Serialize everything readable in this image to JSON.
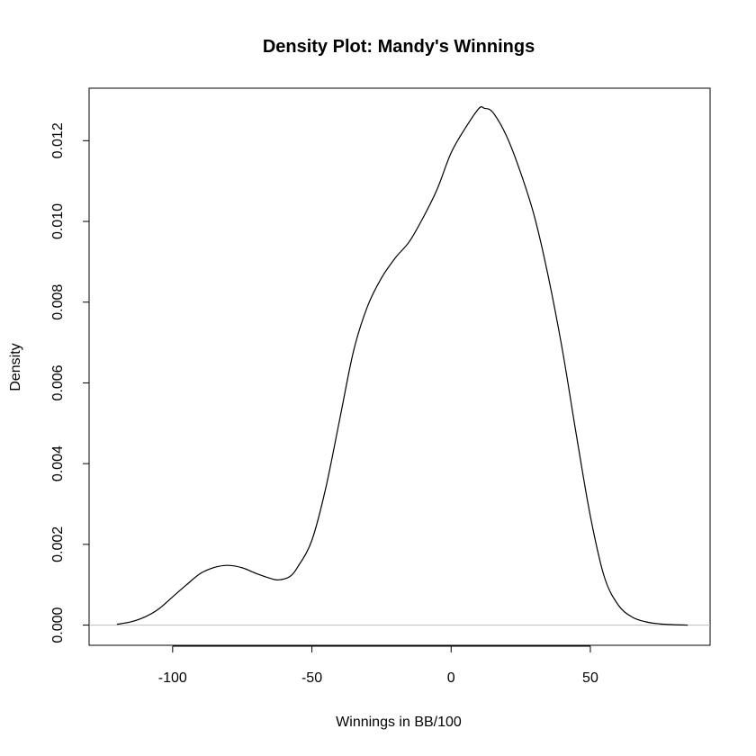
{
  "chart_data": {
    "type": "line",
    "title": "Density Plot: Mandy's Winnings",
    "xlabel": "Winnings in BB/100",
    "ylabel": "Density",
    "xlim": [
      -130,
      93
    ],
    "ylim": [
      -0.0005,
      0.0133
    ],
    "x_ticks": [
      -100,
      -50,
      0,
      50
    ],
    "x_tick_labels": [
      "-100",
      "-50",
      "0",
      "50"
    ],
    "y_ticks": [
      0.0,
      0.002,
      0.004,
      0.006,
      0.008,
      0.01,
      0.012
    ],
    "y_tick_labels": [
      "0.000",
      "0.002",
      "0.004",
      "0.006",
      "0.008",
      "0.010",
      "0.012"
    ],
    "grid": false,
    "baseline_y": 0,
    "colors": {
      "curve": "#000000",
      "baseline": "#bebebe",
      "frame": "#000000"
    },
    "series": [
      {
        "x": [
          -120,
          -115,
          -110,
          -105,
          -100,
          -95,
          -90,
          -85,
          -80,
          -75,
          -70,
          -65,
          -62,
          -58,
          -55,
          -50,
          -45,
          -40,
          -35,
          -30,
          -25,
          -20,
          -15,
          -10,
          -5,
          0,
          5,
          10,
          12,
          15,
          20,
          25,
          30,
          35,
          40,
          45,
          50,
          55,
          60,
          65,
          70,
          75,
          80,
          85
        ],
        "y": [
          2e-05,
          8e-05,
          0.0002,
          0.0004,
          0.0007,
          0.001,
          0.00128,
          0.00143,
          0.00148,
          0.00142,
          0.00128,
          0.00116,
          0.00112,
          0.0012,
          0.00145,
          0.0021,
          0.0034,
          0.0051,
          0.0068,
          0.0079,
          0.0086,
          0.0091,
          0.0095,
          0.0101,
          0.0108,
          0.0117,
          0.0123,
          0.0128,
          0.0128,
          0.0127,
          0.0121,
          0.0112,
          0.0101,
          0.0086,
          0.0068,
          0.0047,
          0.0027,
          0.0012,
          0.0005,
          0.0002,
          8e-05,
          3e-05,
          1e-05,
          0.0
        ]
      }
    ]
  }
}
